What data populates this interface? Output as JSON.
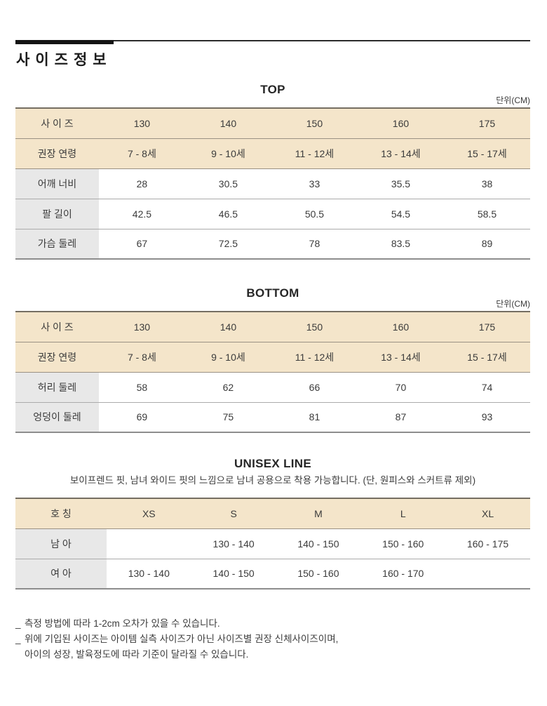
{
  "header": {
    "title": "사이즈정보"
  },
  "tables": {
    "top": {
      "title": "TOP",
      "unit_label": "단위(CM)",
      "header_rows": [
        {
          "label": "사 이 즈",
          "values": [
            "130",
            "140",
            "150",
            "160",
            "175"
          ]
        },
        {
          "label": "권장 연령",
          "values": [
            "7 - 8세",
            "9 - 10세",
            "11 - 12세",
            "13 - 14세",
            "15 - 17세"
          ]
        }
      ],
      "body_rows": [
        {
          "label": "어깨 너비",
          "values": [
            "28",
            "30.5",
            "33",
            "35.5",
            "38"
          ]
        },
        {
          "label": "팔 길이",
          "values": [
            "42.5",
            "46.5",
            "50.5",
            "54.5",
            "58.5"
          ]
        },
        {
          "label": "가슴 둘레",
          "values": [
            "67",
            "72.5",
            "78",
            "83.5",
            "89"
          ]
        }
      ]
    },
    "bottom": {
      "title": "BOTTOM",
      "unit_label": "단위(CM)",
      "header_rows": [
        {
          "label": "사 이 즈",
          "values": [
            "130",
            "140",
            "150",
            "160",
            "175"
          ]
        },
        {
          "label": "권장 연령",
          "values": [
            "7 - 8세",
            "9 - 10세",
            "11 - 12세",
            "13 - 14세",
            "15 - 17세"
          ]
        }
      ],
      "body_rows": [
        {
          "label": "허리 둘레",
          "values": [
            "58",
            "62",
            "66",
            "70",
            "74"
          ]
        },
        {
          "label": "엉덩이 둘레",
          "values": [
            "69",
            "75",
            "81",
            "87",
            "93"
          ]
        }
      ]
    },
    "unisex": {
      "title": "UNISEX LINE",
      "subtitle": "보이프렌드 핏, 남녀 와이드 핏의 느낌으로 남녀 공용으로 착용 가능합니다. (단, 원피스와 스커트류 제외)",
      "header_row": {
        "label": "호 칭",
        "values": [
          "XS",
          "S",
          "M",
          "L",
          "XL"
        ]
      },
      "body_rows": [
        {
          "label": "남 아",
          "values": [
            "",
            "130 - 140",
            "140 - 150",
            "150 - 160",
            "160 - 175"
          ]
        },
        {
          "label": "여 아",
          "values": [
            "130 - 140",
            "140 - 150",
            "150 - 160",
            "160 - 170",
            ""
          ]
        }
      ]
    }
  },
  "notes": {
    "items": [
      {
        "bullet": "_",
        "text": "측정 방법에 따라 1-2cm 오차가 있을 수 있습니다."
      },
      {
        "bullet": "_",
        "text": "위에 기입된 사이즈는 아이템  실측 사이즈가 아닌 사이즈별 권장 신체사이즈이며,"
      },
      {
        "bullet": "",
        "text": "아이의 성장, 발육정도에 따라 기준이 달라질 수 있습니다."
      }
    ]
  },
  "colors": {
    "header_bg": "#f4e5ca",
    "label_bg": "#e8e8e8",
    "line_dark": "#756e62",
    "line_mid": "#9a9183",
    "line_light": "#ababab",
    "line_bottom": "#8d8d8d",
    "text": "#3b3b3b",
    "black": "#141414"
  }
}
